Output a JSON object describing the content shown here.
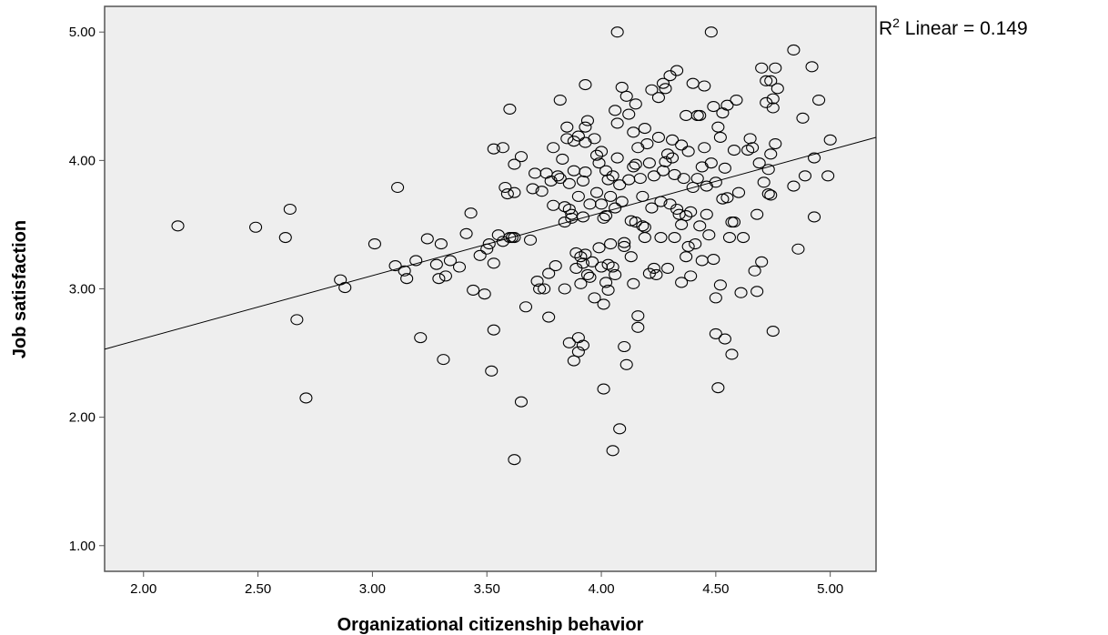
{
  "chart_data": {
    "type": "scatter",
    "xlabel": "Organizational citizenship behavior",
    "ylabel": "Job satisfaction",
    "xlim": [
      1.83,
      5.2
    ],
    "ylim": [
      0.8,
      5.2
    ],
    "xticks": [
      "2.00",
      "2.50",
      "3.00",
      "3.50",
      "4.00",
      "4.50",
      "5.00"
    ],
    "yticks": [
      "1.00",
      "2.00",
      "3.00",
      "4.00",
      "5.00"
    ],
    "grid": false,
    "fit_line": {
      "label_prefix": "R",
      "label_sup": "2",
      "label_suffix": " Linear = 0.149",
      "x": [
        1.83,
        5.2
      ],
      "y": [
        2.53,
        4.18
      ]
    },
    "colors": {
      "plot_bg": "#eeeeee",
      "frame": "#555555",
      "marker": "#000000"
    },
    "points": [
      [
        2.15,
        3.49
      ],
      [
        2.49,
        3.48
      ],
      [
        2.62,
        3.4
      ],
      [
        2.64,
        3.62
      ],
      [
        2.67,
        2.76
      ],
      [
        2.71,
        2.15
      ],
      [
        2.86,
        3.07
      ],
      [
        2.88,
        3.01
      ],
      [
        3.01,
        3.35
      ],
      [
        3.1,
        3.18
      ],
      [
        3.11,
        3.79
      ],
      [
        3.14,
        3.14
      ],
      [
        3.15,
        3.08
      ],
      [
        3.19,
        3.22
      ],
      [
        3.21,
        2.62
      ],
      [
        3.24,
        3.39
      ],
      [
        3.28,
        3.19
      ],
      [
        3.29,
        3.08
      ],
      [
        3.3,
        3.35
      ],
      [
        3.31,
        2.45
      ],
      [
        3.32,
        3.1
      ],
      [
        3.34,
        3.22
      ],
      [
        3.38,
        3.17
      ],
      [
        3.41,
        3.43
      ],
      [
        3.43,
        3.59
      ],
      [
        3.44,
        2.99
      ],
      [
        3.47,
        3.26
      ],
      [
        3.49,
        2.96
      ],
      [
        3.5,
        3.31
      ],
      [
        3.51,
        3.35
      ],
      [
        3.52,
        2.36
      ],
      [
        3.53,
        3.2
      ],
      [
        3.53,
        4.09
      ],
      [
        3.53,
        2.68
      ],
      [
        3.55,
        3.42
      ],
      [
        3.57,
        4.1
      ],
      [
        3.57,
        3.37
      ],
      [
        3.58,
        3.79
      ],
      [
        3.59,
        3.74
      ],
      [
        3.6,
        4.4
      ],
      [
        3.6,
        3.4
      ],
      [
        3.61,
        3.4
      ],
      [
        3.62,
        3.75
      ],
      [
        3.62,
        3.4
      ],
      [
        3.62,
        3.97
      ],
      [
        3.62,
        1.67
      ],
      [
        3.65,
        4.03
      ],
      [
        3.65,
        2.12
      ],
      [
        3.67,
        2.86
      ],
      [
        3.69,
        3.38
      ],
      [
        3.7,
        3.78
      ],
      [
        3.71,
        3.9
      ],
      [
        3.72,
        3.06
      ],
      [
        3.73,
        3.0
      ],
      [
        3.74,
        3.76
      ],
      [
        3.75,
        3.0
      ],
      [
        3.76,
        3.9
      ],
      [
        3.77,
        3.12
      ],
      [
        3.77,
        2.78
      ],
      [
        3.78,
        3.84
      ],
      [
        3.79,
        4.1
      ],
      [
        3.79,
        3.65
      ],
      [
        3.8,
        3.18
      ],
      [
        3.81,
        3.88
      ],
      [
        3.82,
        4.47
      ],
      [
        3.82,
        3.86
      ],
      [
        3.83,
        4.01
      ],
      [
        3.84,
        3.64
      ],
      [
        3.84,
        3.52
      ],
      [
        3.84,
        3.0
      ],
      [
        3.85,
        4.26
      ],
      [
        3.85,
        4.17
      ],
      [
        3.86,
        3.82
      ],
      [
        3.86,
        3.62
      ],
      [
        3.86,
        2.58
      ],
      [
        3.87,
        3.58
      ],
      [
        3.87,
        3.55
      ],
      [
        3.88,
        4.15
      ],
      [
        3.88,
        3.92
      ],
      [
        3.88,
        2.44
      ],
      [
        3.89,
        3.28
      ],
      [
        3.89,
        3.16
      ],
      [
        3.9,
        4.19
      ],
      [
        3.9,
        3.72
      ],
      [
        3.9,
        2.62
      ],
      [
        3.9,
        2.51
      ],
      [
        3.91,
        3.25
      ],
      [
        3.91,
        3.04
      ],
      [
        3.92,
        3.84
      ],
      [
        3.92,
        3.56
      ],
      [
        3.92,
        3.2
      ],
      [
        3.92,
        2.56
      ],
      [
        3.93,
        4.59
      ],
      [
        3.93,
        4.26
      ],
      [
        3.93,
        4.14
      ],
      [
        3.93,
        3.91
      ],
      [
        3.93,
        3.27
      ],
      [
        3.94,
        3.11
      ],
      [
        3.94,
        4.31
      ],
      [
        3.95,
        3.66
      ],
      [
        3.95,
        3.09
      ],
      [
        3.96,
        3.21
      ],
      [
        3.97,
        4.17
      ],
      [
        3.97,
        2.93
      ],
      [
        3.98,
        4.04
      ],
      [
        3.98,
        3.75
      ],
      [
        3.99,
        3.98
      ],
      [
        3.99,
        3.32
      ],
      [
        4.0,
        4.07
      ],
      [
        4.0,
        3.66
      ],
      [
        4.0,
        3.17
      ],
      [
        4.01,
        2.22
      ],
      [
        4.01,
        2.88
      ],
      [
        4.01,
        3.55
      ],
      [
        4.02,
        3.92
      ],
      [
        4.02,
        3.57
      ],
      [
        4.02,
        3.05
      ],
      [
        4.03,
        3.85
      ],
      [
        4.03,
        3.19
      ],
      [
        4.03,
        2.99
      ],
      [
        4.04,
        3.72
      ],
      [
        4.04,
        3.35
      ],
      [
        4.05,
        3.88
      ],
      [
        4.05,
        3.17
      ],
      [
        4.05,
        1.74
      ],
      [
        4.06,
        4.39
      ],
      [
        4.06,
        3.63
      ],
      [
        4.06,
        3.11
      ],
      [
        4.07,
        4.02
      ],
      [
        4.07,
        5.0
      ],
      [
        4.07,
        4.29
      ],
      [
        4.08,
        3.81
      ],
      [
        4.08,
        1.91
      ],
      [
        4.09,
        3.68
      ],
      [
        4.09,
        4.57
      ],
      [
        4.1,
        3.36
      ],
      [
        4.1,
        2.55
      ],
      [
        4.1,
        3.33
      ],
      [
        4.11,
        4.5
      ],
      [
        4.11,
        2.41
      ],
      [
        4.12,
        3.85
      ],
      [
        4.12,
        4.36
      ],
      [
        4.13,
        3.25
      ],
      [
        4.13,
        3.53
      ],
      [
        4.14,
        4.22
      ],
      [
        4.14,
        3.04
      ],
      [
        4.14,
        3.95
      ],
      [
        4.15,
        4.44
      ],
      [
        4.15,
        3.97
      ],
      [
        4.15,
        3.52
      ],
      [
        4.16,
        2.79
      ],
      [
        4.16,
        2.7
      ],
      [
        4.16,
        4.1
      ],
      [
        4.17,
        3.86
      ],
      [
        4.18,
        3.72
      ],
      [
        4.18,
        3.49
      ],
      [
        4.19,
        4.25
      ],
      [
        4.19,
        3.48
      ],
      [
        4.19,
        3.4
      ],
      [
        4.2,
        4.13
      ],
      [
        4.21,
        3.98
      ],
      [
        4.21,
        3.12
      ],
      [
        4.22,
        4.55
      ],
      [
        4.22,
        3.63
      ],
      [
        4.23,
        3.88
      ],
      [
        4.23,
        3.16
      ],
      [
        4.24,
        3.11
      ],
      [
        4.25,
        4.49
      ],
      [
        4.25,
        4.18
      ],
      [
        4.26,
        3.68
      ],
      [
        4.26,
        3.4
      ],
      [
        4.27,
        4.6
      ],
      [
        4.27,
        3.92
      ],
      [
        4.28,
        4.56
      ],
      [
        4.28,
        3.99
      ],
      [
        4.29,
        4.05
      ],
      [
        4.29,
        3.16
      ],
      [
        4.3,
        4.66
      ],
      [
        4.3,
        3.66
      ],
      [
        4.31,
        4.02
      ],
      [
        4.31,
        4.16
      ],
      [
        4.32,
        3.4
      ],
      [
        4.32,
        3.89
      ],
      [
        4.33,
        4.7
      ],
      [
        4.33,
        3.62
      ],
      [
        4.34,
        3.58
      ],
      [
        4.35,
        4.12
      ],
      [
        4.35,
        3.5
      ],
      [
        4.35,
        3.05
      ],
      [
        4.36,
        3.86
      ],
      [
        4.37,
        4.35
      ],
      [
        4.37,
        3.57
      ],
      [
        4.37,
        3.25
      ],
      [
        4.38,
        3.33
      ],
      [
        4.38,
        4.07
      ],
      [
        4.39,
        3.6
      ],
      [
        4.39,
        3.1
      ],
      [
        4.4,
        4.6
      ],
      [
        4.4,
        3.79
      ],
      [
        4.41,
        3.35
      ],
      [
        4.42,
        4.35
      ],
      [
        4.42,
        3.86
      ],
      [
        4.43,
        4.35
      ],
      [
        4.43,
        3.49
      ],
      [
        4.44,
        3.22
      ],
      [
        4.44,
        3.95
      ],
      [
        4.45,
        4.58
      ],
      [
        4.45,
        4.1
      ],
      [
        4.46,
        3.58
      ],
      [
        4.46,
        3.8
      ],
      [
        4.47,
        3.42
      ],
      [
        4.48,
        3.98
      ],
      [
        4.48,
        5.0
      ],
      [
        4.49,
        4.42
      ],
      [
        4.49,
        3.23
      ],
      [
        4.5,
        2.93
      ],
      [
        4.5,
        2.65
      ],
      [
        4.5,
        3.83
      ],
      [
        4.51,
        4.26
      ],
      [
        4.51,
        2.23
      ],
      [
        4.52,
        4.18
      ],
      [
        4.52,
        3.03
      ],
      [
        4.53,
        4.37
      ],
      [
        4.53,
        3.7
      ],
      [
        4.54,
        3.94
      ],
      [
        4.54,
        2.61
      ],
      [
        4.55,
        4.43
      ],
      [
        4.55,
        3.71
      ],
      [
        4.56,
        3.4
      ],
      [
        4.57,
        3.52
      ],
      [
        4.57,
        2.49
      ],
      [
        4.58,
        4.08
      ],
      [
        4.58,
        3.52
      ],
      [
        4.59,
        4.47
      ],
      [
        4.6,
        3.75
      ],
      [
        4.61,
        2.97
      ],
      [
        4.62,
        3.4
      ],
      [
        4.64,
        4.08
      ],
      [
        4.65,
        4.17
      ],
      [
        4.66,
        4.1
      ],
      [
        4.67,
        3.14
      ],
      [
        4.68,
        2.98
      ],
      [
        4.68,
        3.58
      ],
      [
        4.69,
        3.98
      ],
      [
        4.7,
        4.72
      ],
      [
        4.7,
        3.21
      ],
      [
        4.71,
        3.83
      ],
      [
        4.72,
        4.45
      ],
      [
        4.72,
        4.62
      ],
      [
        4.73,
        3.93
      ],
      [
        4.73,
        3.74
      ],
      [
        4.74,
        4.62
      ],
      [
        4.74,
        4.05
      ],
      [
        4.74,
        3.73
      ],
      [
        4.75,
        4.48
      ],
      [
        4.75,
        4.41
      ],
      [
        4.75,
        2.67
      ],
      [
        4.76,
        4.72
      ],
      [
        4.76,
        4.13
      ],
      [
        4.77,
        4.56
      ],
      [
        4.84,
        4.86
      ],
      [
        4.84,
        3.8
      ],
      [
        4.86,
        3.31
      ],
      [
        4.88,
        4.33
      ],
      [
        4.89,
        3.88
      ],
      [
        4.92,
        4.73
      ],
      [
        4.93,
        3.56
      ],
      [
        4.93,
        4.02
      ],
      [
        4.95,
        4.47
      ],
      [
        4.99,
        3.88
      ],
      [
        5.0,
        4.16
      ]
    ]
  }
}
